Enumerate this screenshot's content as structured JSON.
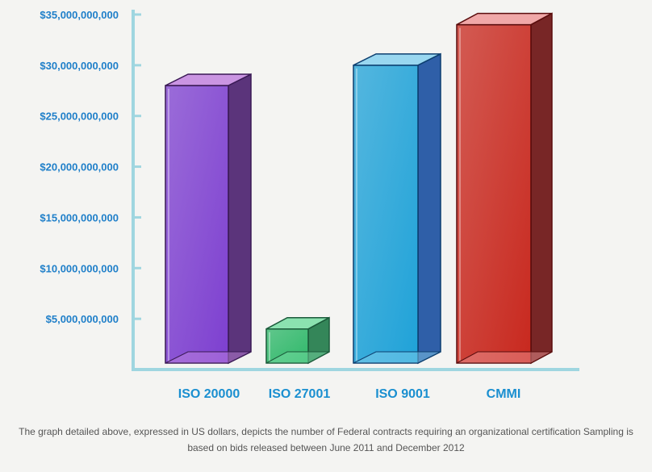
{
  "chart_data": {
    "type": "bar",
    "categories": [
      "ISO 20000",
      "ISO 27001",
      "ISO 9001",
      "CMMI"
    ],
    "values": [
      28000000000,
      4000000000,
      30000000000,
      34000000000
    ],
    "ylim": [
      0,
      35000000000
    ],
    "yticks": [
      "$5,000,000,000",
      "$10,000,000,000",
      "$15,000,000,000",
      "$20,000,000,000",
      "$25,000,000,000",
      "$30,000,000,000",
      "$35,000,000,000"
    ],
    "ytick_values": [
      5000000000,
      10000000000,
      15000000000,
      20000000000,
      25000000000,
      30000000000,
      35000000000
    ],
    "grid": false,
    "colors": {
      "axis": "#9fd6e0",
      "tick_text": "#1f7fc9",
      "category_text": "#1a8fd0",
      "bars": [
        {
          "front": "#7d3fd0",
          "side": "#4a1f6e",
          "top": "#c58be0",
          "edge": "#3a1a55"
        },
        {
          "front": "#2fb86a",
          "side": "#1f7a48",
          "top": "#7fe0a8",
          "edge": "#1b5a3a"
        },
        {
          "front": "#1fa2d8",
          "side": "#1a4fa0",
          "top": "#8fd4f0",
          "edge": "#0d3f70"
        },
        {
          "front": "#c8281e",
          "side": "#6a1010",
          "top": "#f0a0a0",
          "edge": "#5a0d0d"
        }
      ]
    }
  },
  "caption": {
    "line1": "The graph detailed above, expressed in US dollars, depicts the number of Federal contracts requiring an organizational certification Sampling is",
    "line2": "based on bids released between June 2011 and December 2012"
  }
}
